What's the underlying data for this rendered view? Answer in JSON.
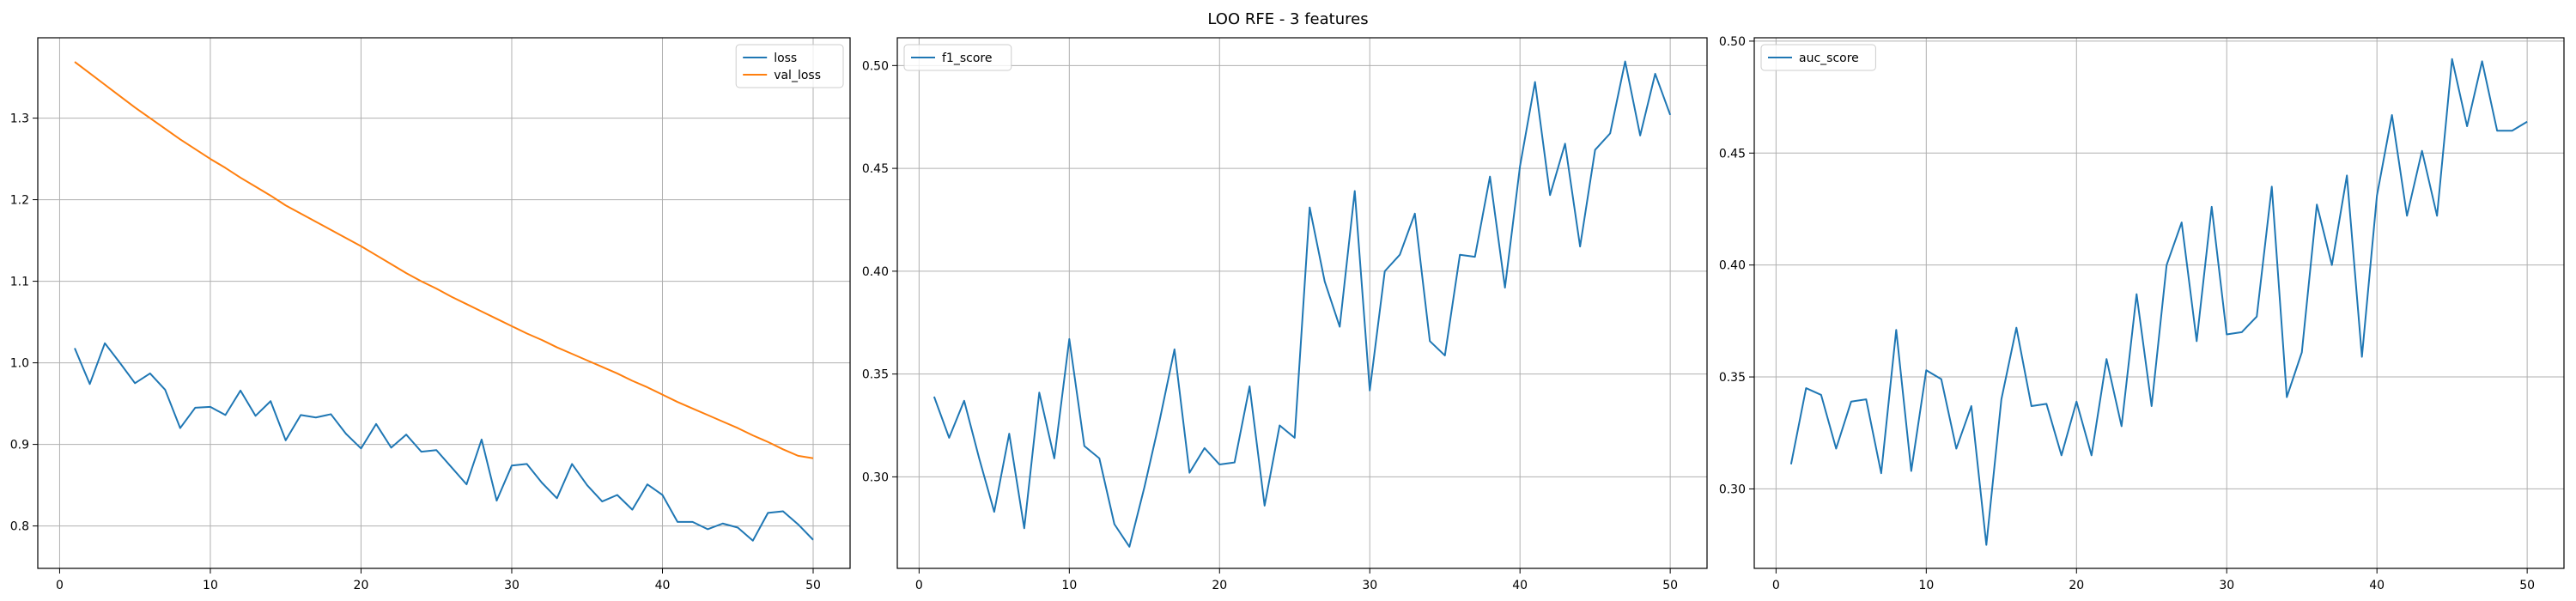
{
  "figure": {
    "title": "LOO RFE - 3 features"
  },
  "chart_data": [
    {
      "type": "line",
      "xlim": [
        -1.45,
        52.45
      ],
      "ylim": [
        0.748,
        1.3985
      ],
      "xticks": [
        0,
        10,
        20,
        30,
        40,
        50
      ],
      "yticks": [
        0.8,
        0.9,
        1.0,
        1.1,
        1.2,
        1.3
      ],
      "ytick_labels": [
        "0.8",
        "0.9",
        "1.0",
        "1.1",
        "1.2",
        "1.3"
      ],
      "grid": true,
      "legend": "upper right",
      "x": [
        1,
        2,
        3,
        4,
        5,
        6,
        7,
        8,
        9,
        10,
        11,
        12,
        13,
        14,
        15,
        16,
        17,
        18,
        19,
        20,
        21,
        22,
        23,
        24,
        25,
        26,
        27,
        28,
        29,
        30,
        31,
        32,
        33,
        34,
        35,
        36,
        37,
        38,
        39,
        40,
        41,
        42,
        43,
        44,
        45,
        46,
        47,
        48,
        49,
        50
      ],
      "series": [
        {
          "name": "loss",
          "color": "#1f77b4",
          "values": [
            1.018,
            0.974,
            1.024,
            1.0,
            0.975,
            0.987,
            0.967,
            0.92,
            0.945,
            0.946,
            0.936,
            0.966,
            0.935,
            0.953,
            0.905,
            0.936,
            0.933,
            0.937,
            0.913,
            0.895,
            0.925,
            0.896,
            0.912,
            0.891,
            0.893,
            0.872,
            0.851,
            0.906,
            0.831,
            0.874,
            0.876,
            0.853,
            0.834,
            0.876,
            0.85,
            0.83,
            0.838,
            0.82,
            0.851,
            0.838,
            0.805,
            0.805,
            0.796,
            0.803,
            0.798,
            0.782,
            0.816,
            0.818,
            0.802,
            0.783
          ]
        },
        {
          "name": "val_loss",
          "color": "#ff7f0e",
          "values": [
            1.369,
            1.355,
            1.341,
            1.327,
            1.313,
            1.3,
            1.287,
            1.274,
            1.262,
            1.25,
            1.239,
            1.227,
            1.216,
            1.205,
            1.193,
            1.183,
            1.173,
            1.163,
            1.153,
            1.143,
            1.132,
            1.121,
            1.11,
            1.1,
            1.091,
            1.081,
            1.072,
            1.063,
            1.054,
            1.045,
            1.036,
            1.028,
            1.019,
            1.011,
            1.003,
            0.995,
            0.987,
            0.978,
            0.97,
            0.961,
            0.952,
            0.944,
            0.936,
            0.928,
            0.92,
            0.911,
            0.903,
            0.894,
            0.886,
            0.883
          ]
        }
      ]
    },
    {
      "type": "line",
      "xlim": [
        -1.45,
        52.45
      ],
      "ylim": [
        0.2555,
        0.5135
      ],
      "xticks": [
        0,
        10,
        20,
        30,
        40,
        50
      ],
      "yticks": [
        0.3,
        0.35,
        0.4,
        0.45,
        0.5
      ],
      "ytick_labels": [
        "0.30",
        "0.35",
        "0.40",
        "0.45",
        "0.50"
      ],
      "grid": true,
      "legend": "upper left",
      "x": [
        1,
        2,
        3,
        4,
        5,
        6,
        7,
        8,
        9,
        10,
        11,
        12,
        13,
        14,
        15,
        16,
        17,
        18,
        19,
        20,
        21,
        22,
        23,
        24,
        25,
        26,
        27,
        28,
        29,
        30,
        31,
        32,
        33,
        34,
        35,
        36,
        37,
        38,
        39,
        40,
        41,
        42,
        43,
        44,
        45,
        46,
        47,
        48,
        49,
        50
      ],
      "series": [
        {
          "name": "f1_score",
          "color": "#1f77b4",
          "values": [
            0.339,
            0.319,
            0.337,
            0.309,
            0.283,
            0.321,
            0.275,
            0.341,
            0.309,
            0.367,
            0.315,
            0.309,
            0.277,
            0.266,
            0.295,
            0.327,
            0.362,
            0.302,
            0.314,
            0.306,
            0.307,
            0.344,
            0.286,
            0.325,
            0.319,
            0.431,
            0.395,
            0.373,
            0.439,
            0.342,
            0.4,
            0.408,
            0.428,
            0.366,
            0.359,
            0.408,
            0.407,
            0.446,
            0.392,
            0.451,
            0.492,
            0.437,
            0.462,
            0.412,
            0.459,
            0.467,
            0.502,
            0.466,
            0.496,
            0.476
          ]
        }
      ]
    },
    {
      "type": "line",
      "xlim": [
        -1.45,
        52.45
      ],
      "ylim": [
        0.2645,
        0.5015
      ],
      "xticks": [
        0,
        10,
        20,
        30,
        40,
        50
      ],
      "yticks": [
        0.3,
        0.35,
        0.4,
        0.45,
        0.5
      ],
      "ytick_labels": [
        "0.30",
        "0.35",
        "0.40",
        "0.45",
        "0.50"
      ],
      "grid": true,
      "legend": "upper left",
      "x": [
        1,
        2,
        3,
        4,
        5,
        6,
        7,
        8,
        9,
        10,
        11,
        12,
        13,
        14,
        15,
        16,
        17,
        18,
        19,
        20,
        21,
        22,
        23,
        24,
        25,
        26,
        27,
        28,
        29,
        30,
        31,
        32,
        33,
        34,
        35,
        36,
        37,
        38,
        39,
        40,
        41,
        42,
        43,
        44,
        45,
        46,
        47,
        48,
        49,
        50
      ],
      "series": [
        {
          "name": "auc_score",
          "color": "#1f77b4",
          "values": [
            0.311,
            0.345,
            0.342,
            0.318,
            0.339,
            0.34,
            0.307,
            0.371,
            0.308,
            0.353,
            0.349,
            0.318,
            0.337,
            0.275,
            0.34,
            0.372,
            0.337,
            0.338,
            0.315,
            0.339,
            0.315,
            0.358,
            0.328,
            0.387,
            0.337,
            0.4,
            0.419,
            0.366,
            0.426,
            0.369,
            0.37,
            0.377,
            0.435,
            0.341,
            0.361,
            0.427,
            0.4,
            0.44,
            0.359,
            0.431,
            0.467,
            0.422,
            0.451,
            0.422,
            0.492,
            0.462,
            0.491,
            0.46,
            0.46,
            0.464
          ]
        }
      ]
    }
  ]
}
